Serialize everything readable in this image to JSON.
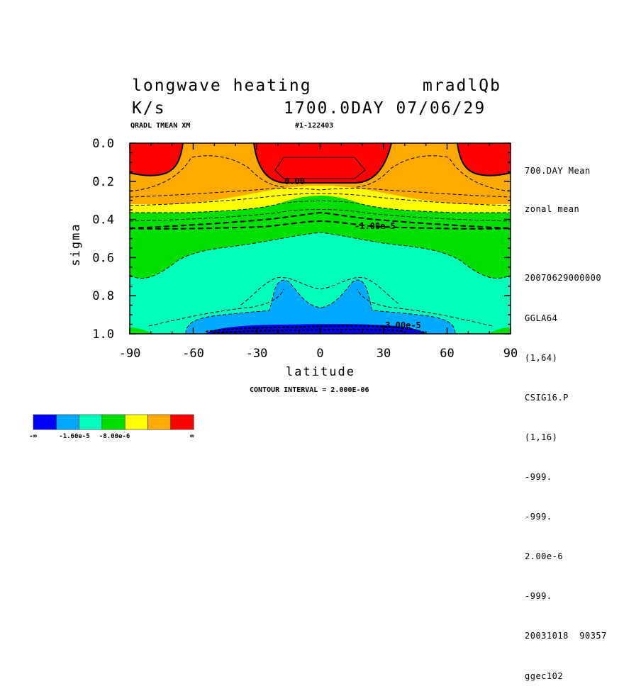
{
  "header": {
    "title_left": "longwave heating",
    "title_right": "mradlQb",
    "units": "K/s",
    "time": "1700.0DAY 07/06/29",
    "var_label": "QRADL TMEAN XM",
    "run_id": "#1-122403"
  },
  "side_info": {
    "lines_top": [
      "700.DAY Mean",
      "zonal mean"
    ],
    "lines_bottom": [
      "20070629000000",
      "GGLA64",
      "(1,64)",
      "CSIG16.P",
      "(1,16)",
      "-999.",
      "-999.",
      "2.00e-6",
      "-999.",
      "20031018  90357",
      "ggec102"
    ]
  },
  "footer": {
    "contour_interval": "CONTOUR INTERVAL = 2.000E-06"
  },
  "colors": {
    "level_blue": "#0000ff",
    "level_lightblue": "#00aaff",
    "level_aqua": "#00ffbb",
    "level_green": "#00e000",
    "level_yellow": "#ffff00",
    "level_orange": "#ffaa00",
    "level_red": "#ff0000"
  },
  "chart_data": {
    "type": "heatmap",
    "title": "longwave heating",
    "xlabel": "latitude",
    "ylabel": "sigma",
    "xlim": [
      -90,
      90
    ],
    "ylim": [
      1.0,
      0.0
    ],
    "x_ticks": [
      "-90",
      "-60",
      "-30",
      "0",
      "30",
      "60",
      "90"
    ],
    "y_ticks": [
      "0.0",
      "0.2",
      "0.4",
      "0.6",
      "0.8",
      "1.0"
    ],
    "contour_labels": [
      "0.00",
      "-1.00e-5",
      "-3.00e-5"
    ],
    "colorbar": {
      "colors": [
        "#0000ff",
        "#00aaff",
        "#00ffbb",
        "#00e000",
        "#ffff00",
        "#ffaa00",
        "#ff0000"
      ],
      "labels": [
        "-∞",
        "-1.60e-5",
        "-8.00e-6",
        "∞"
      ]
    }
  }
}
